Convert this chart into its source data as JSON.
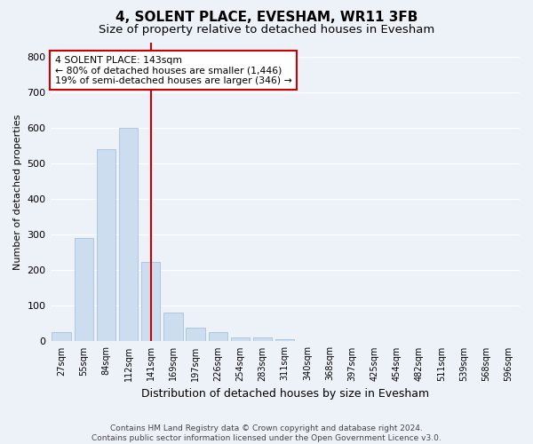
{
  "title": "4, SOLENT PLACE, EVESHAM, WR11 3FB",
  "subtitle": "Size of property relative to detached houses in Evesham",
  "xlabel": "Distribution of detached houses by size in Evesham",
  "ylabel": "Number of detached properties",
  "footer_line1": "Contains HM Land Registry data © Crown copyright and database right 2024.",
  "footer_line2": "Contains public sector information licensed under the Open Government Licence v3.0.",
  "bar_labels": [
    "27sqm",
    "55sqm",
    "84sqm",
    "112sqm",
    "141sqm",
    "169sqm",
    "197sqm",
    "226sqm",
    "254sqm",
    "283sqm",
    "311sqm",
    "340sqm",
    "368sqm",
    "397sqm",
    "425sqm",
    "454sqm",
    "482sqm",
    "511sqm",
    "539sqm",
    "568sqm",
    "596sqm"
  ],
  "bar_values": [
    25,
    290,
    540,
    600,
    222,
    82,
    38,
    25,
    12,
    10,
    6,
    0,
    0,
    0,
    0,
    0,
    0,
    0,
    0,
    0,
    0
  ],
  "bar_color": "#ccddf0",
  "bar_edgecolor": "#9bbbd8",
  "vline_index": 4,
  "vline_color": "#cc0000",
  "annotation_text": "4 SOLENT PLACE: 143sqm\n← 80% of detached houses are smaller (1,446)\n19% of semi-detached houses are larger (346) →",
  "annotation_box_color": "#cc0000",
  "ylim": [
    0,
    840
  ],
  "yticks": [
    0,
    100,
    200,
    300,
    400,
    500,
    600,
    700,
    800
  ],
  "bg_color": "#edf2f9",
  "plot_bg_color": "#edf2f9",
  "grid_color": "#ffffff",
  "title_fontsize": 11,
  "subtitle_fontsize": 9.5,
  "ylabel_fontsize": 8,
  "xlabel_fontsize": 9
}
